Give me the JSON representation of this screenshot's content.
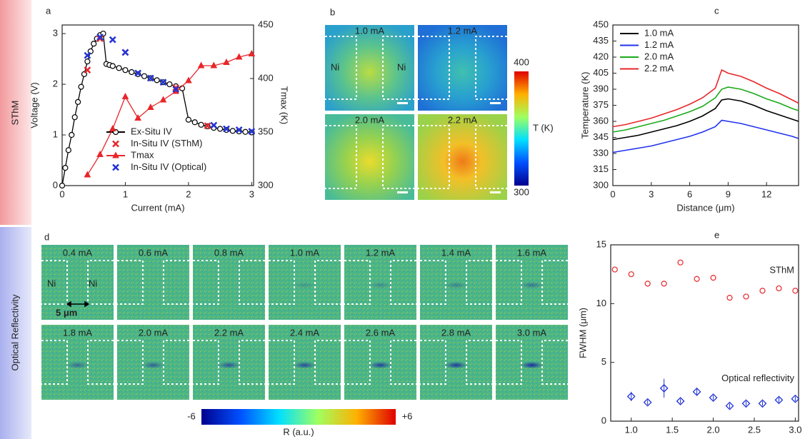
{
  "side_labels": [
    "SThM",
    "Optical Reflectivity"
  ],
  "chart_data": [
    {
      "type": "line",
      "panel": "a",
      "xlabel": "Current (mA)",
      "ylabel": "Voltage (V)",
      "y2label": "Tmax (K)",
      "xlim": [
        0,
        3.03
      ],
      "ylim": [
        0,
        3.17
      ],
      "y2lim": [
        300,
        450
      ],
      "xticks": [
        0,
        1,
        2,
        3
      ],
      "yticks": [
        0,
        1,
        2,
        3
      ],
      "y2ticks": [
        300,
        350,
        400,
        450
      ],
      "legend": "lower left",
      "series": [
        {
          "name": "Ex-Situ IV",
          "color": "#000000",
          "marker": "circle-open",
          "line": true,
          "x": [
            0,
            0.05,
            0.1,
            0.15,
            0.2,
            0.25,
            0.3,
            0.35,
            0.4,
            0.45,
            0.5,
            0.55,
            0.6,
            0.65,
            0.7,
            0.75,
            0.8,
            0.9,
            1.0,
            1.1,
            1.2,
            1.3,
            1.4,
            1.5,
            1.6,
            1.7,
            1.8,
            1.9,
            2.0,
            2.1,
            2.2,
            2.3,
            2.4,
            2.5,
            2.6,
            2.7,
            2.8,
            2.9,
            3.0
          ],
          "values": [
            0,
            0.35,
            0.7,
            1.0,
            1.35,
            1.65,
            1.95,
            2.2,
            2.45,
            2.65,
            2.8,
            2.9,
            2.97,
            3.0,
            2.4,
            2.38,
            2.36,
            2.32,
            2.28,
            2.24,
            2.2,
            2.16,
            2.12,
            2.08,
            2.04,
            2.0,
            1.96,
            1.92,
            1.3,
            1.25,
            1.2,
            1.17,
            1.14,
            1.12,
            1.1,
            1.08,
            1.07,
            1.06,
            1.05
          ]
        },
        {
          "name": "In-Situ IV (SThM)",
          "color": "#e8262a",
          "marker": "x",
          "line": false,
          "x": [
            0.4,
            0.6,
            1.0,
            1.8,
            2.3
          ],
          "values": [
            2.28,
            2.9,
            2.63,
            1.93,
            1.18
          ]
        },
        {
          "name": "Tmax",
          "color": "#e8262a",
          "marker": "triangle",
          "line": true,
          "axis": "y2",
          "x": [
            0.4,
            0.6,
            0.8,
            1.0,
            1.2,
            1.4,
            1.6,
            1.8,
            2.0,
            2.2,
            2.4,
            2.6,
            2.8,
            3.0
          ],
          "values": [
            310,
            329,
            353,
            383,
            363,
            373,
            380,
            388,
            398,
            412,
            412,
            415,
            420,
            423
          ]
        },
        {
          "name": "In-Situ IV (Optical)",
          "color": "#2233d6",
          "marker": "x",
          "line": false,
          "x": [
            0.4,
            0.6,
            0.8,
            1.0,
            1.2,
            1.4,
            1.6,
            1.8,
            2.4,
            2.6,
            2.8,
            3.0
          ],
          "values": [
            2.57,
            2.93,
            2.88,
            2.63,
            2.22,
            2.12,
            2.04,
            1.9,
            1.19,
            1.12,
            1.1,
            1.07
          ]
        }
      ]
    },
    {
      "type": "line",
      "panel": "c",
      "xlabel": "Distance (μm)",
      "ylabel": "Temperature (K)",
      "xlim": [
        0,
        14.5
      ],
      "ylim": [
        300,
        450
      ],
      "xticks": [
        0,
        3,
        6,
        9,
        12
      ],
      "yticks": [
        300,
        315,
        330,
        345,
        360,
        375,
        390,
        405,
        420,
        435,
        450
      ],
      "legend": "upper left",
      "x": [
        0,
        1,
        2,
        3,
        4,
        5,
        6,
        7,
        8,
        8.5,
        9,
        10,
        11,
        12,
        13,
        14,
        14.5
      ],
      "series": [
        {
          "name": "1.0 mA",
          "color": "#000000",
          "values": [
            343,
            345,
            347,
            350,
            353,
            356,
            360,
            365,
            372,
            380,
            381,
            379,
            375,
            370,
            366,
            362,
            360
          ]
        },
        {
          "name": "1.2 mA",
          "color": "#2233ee",
          "values": [
            331,
            333,
            335,
            337,
            340,
            343,
            346,
            350,
            355,
            361,
            360,
            358,
            355,
            352,
            349,
            346,
            344
          ]
        },
        {
          "name": "2.0 mA",
          "color": "#1aab1a",
          "values": [
            350,
            352,
            355,
            358,
            361,
            365,
            369,
            374,
            382,
            390,
            392,
            390,
            386,
            381,
            377,
            372,
            370
          ]
        },
        {
          "name": "2.2 mA",
          "color": "#e8262a",
          "values": [
            355,
            357,
            360,
            363,
            367,
            371,
            376,
            382,
            391,
            408,
            405,
            402,
            397,
            391,
            386,
            380,
            377
          ]
        }
      ]
    },
    {
      "type": "scatter",
      "panel": "e",
      "xlabel": "Current (mA)",
      "ylabel": "FWHM (μm)",
      "xlim": [
        0.75,
        3.04
      ],
      "ylim": [
        0,
        15
      ],
      "xticks": [
        {
          "value": 1,
          "label": "1.0"
        },
        1.5,
        {
          "value": 2,
          "label": "2.0"
        },
        2.5,
        {
          "value": 3,
          "label": "3.0"
        }
      ],
      "yticks": [
        0,
        5,
        10,
        15
      ],
      "legend": "inline",
      "series": [
        {
          "name": "SThM",
          "color": "#e8262a",
          "marker": "circle-open",
          "x": [
            0.8,
            1.0,
            1.2,
            1.4,
            1.6,
            1.8,
            2.0,
            2.2,
            2.4,
            2.6,
            2.8,
            3.0
          ],
          "values": [
            12.9,
            12.5,
            11.7,
            11.7,
            13.5,
            12.1,
            12.2,
            10.5,
            10.6,
            11.1,
            11.3,
            11.1
          ],
          "errors": [
            0.2,
            0.2,
            0.2,
            0.2,
            0.2,
            0.2,
            0.2,
            0.2,
            0.2,
            0.2,
            0.2,
            0.2
          ]
        },
        {
          "name": "Optical reflectivity",
          "color": "#2233d6",
          "marker": "diamond-open",
          "x": [
            1.0,
            1.2,
            1.4,
            1.6,
            1.8,
            2.0,
            2.2,
            2.4,
            2.6,
            2.8,
            3.0
          ],
          "values": [
            2.1,
            1.6,
            2.8,
            1.7,
            2.5,
            2.0,
            1.3,
            1.5,
            1.5,
            1.8,
            1.9
          ],
          "errors": [
            0.4,
            0.2,
            0.8,
            0.2,
            0.3,
            0.2,
            0.2,
            0.2,
            0.2,
            0.2,
            0.2
          ]
        }
      ]
    }
  ],
  "panel_b": {
    "label": "b",
    "maps": [
      "1.0 mA",
      "1.2 mA",
      "2.0 mA",
      "2.2 mA"
    ],
    "electrodes": [
      "Ni",
      "Ni"
    ],
    "colorbar": {
      "labels": [
        "400",
        "300"
      ],
      "title": "T (K)"
    }
  },
  "panel_d": {
    "label": "d",
    "maps": [
      "0.4 mA",
      "0.6 mA",
      "0.8 mA",
      "1.0 mA",
      "1.2 mA",
      "1.4 mA",
      "1.6 mA",
      "1.8 mA",
      "2.0 mA",
      "2.2 mA",
      "2.4 mA",
      "2.6 mA",
      "2.8 mA",
      "3.0 mA"
    ],
    "electrodes": [
      "Ni",
      "Ni"
    ],
    "scale_bar": "5 μm",
    "colorbar": {
      "labels": [
        "-6",
        "+6"
      ],
      "title": "R (a.u.)"
    }
  }
}
